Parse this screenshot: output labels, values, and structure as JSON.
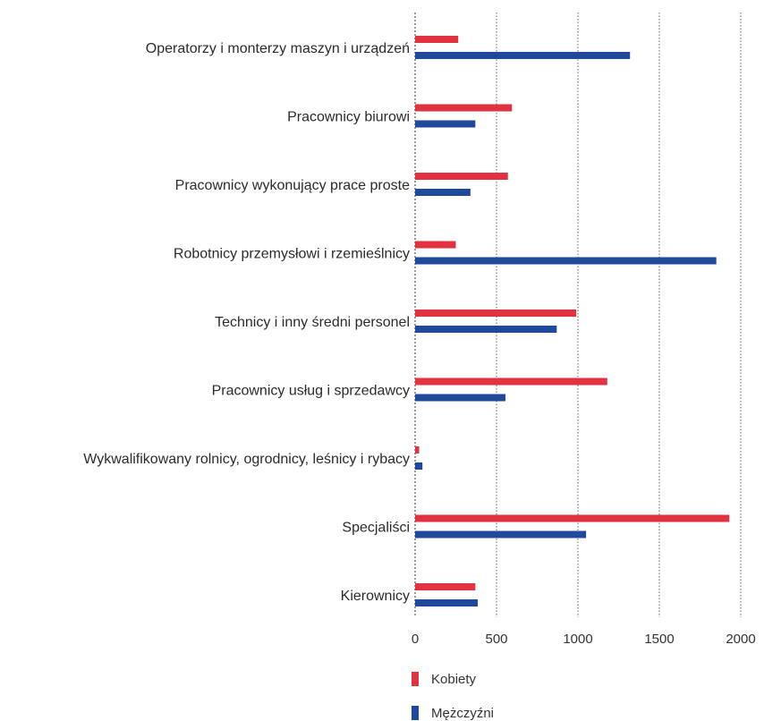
{
  "chart_data": {
    "type": "bar",
    "orientation": "horizontal",
    "categories": [
      "Operatorzy i monterzy maszyn i urządzeń",
      "Pracownicy biurowi",
      "Pracownicy wykonujący prace proste",
      "Robotnicy przemysłowi i rzemieślnicy",
      "Technicy i inny średni personel",
      "Pracownicy usług i sprzedawcy",
      "Wykwalifikowany rolnicy, ogrodnicy, leśnicy i rybacy",
      "Specjaliści",
      "Kierownicy"
    ],
    "series": [
      {
        "name": "Kobiety",
        "color": "#e2323f",
        "values": [
          265,
          595,
          570,
          250,
          990,
          1180,
          25,
          1930,
          370
        ]
      },
      {
        "name": "Mężczyźni",
        "color": "#1f4a9c",
        "values": [
          1320,
          370,
          340,
          1850,
          870,
          555,
          45,
          1050,
          385
        ]
      }
    ],
    "xlim": [
      0,
      2000
    ],
    "xticks": [
      "0",
      "500",
      "1000",
      "1500",
      "2000"
    ],
    "grid": "vertical-dotted",
    "legend_position": "bottom-left"
  }
}
